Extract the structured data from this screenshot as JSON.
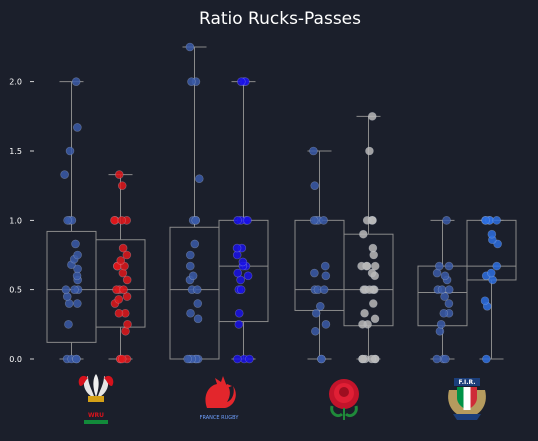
{
  "chart_data": {
    "type": "boxplot-strip",
    "title": "Ratio Rucks-Passes",
    "xlabel": "",
    "ylabel": "",
    "ylim": [
      0,
      2.25
    ],
    "yticks": [
      "0.0",
      "0.5",
      "1.0",
      "1.5",
      "2.0"
    ],
    "grid": false,
    "legend": "none",
    "colors": {
      "background": "#1b1f2b",
      "box": "#8a8a8a"
    },
    "groups": [
      {
        "logo": "wales-feathers-logo",
        "logo_text": "WRU",
        "series": [
          {
            "color": "#3a5ba8",
            "box": {
              "q1": 0.12,
              "median": 0.5,
              "q3": 0.92,
              "whisker_low": 0.0,
              "whisker_high": 2.0
            },
            "points": [
              0.0,
              0.0,
              0.0,
              0.0,
              0.25,
              0.4,
              0.4,
              0.45,
              0.5,
              0.5,
              0.5,
              0.57,
              0.6,
              0.65,
              0.68,
              0.72,
              0.75,
              0.83,
              1.0,
              1.0,
              1.0,
              1.33,
              1.5,
              1.67,
              2.0
            ]
          },
          {
            "color": "#e0181b",
            "box": {
              "q1": 0.23,
              "median": 0.5,
              "q3": 0.86,
              "whisker_low": 0.0,
              "whisker_high": 1.33
            },
            "points": [
              0.0,
              0.0,
              0.0,
              0.0,
              0.2,
              0.25,
              0.33,
              0.33,
              0.4,
              0.43,
              0.45,
              0.5,
              0.5,
              0.5,
              0.57,
              0.62,
              0.67,
              0.67,
              0.67,
              0.71,
              0.75,
              0.8,
              1.0,
              1.0,
              1.0,
              1.0,
              1.25,
              1.33
            ]
          }
        ]
      },
      {
        "logo": "france-rooster-logo",
        "logo_text": "FRANCE RUGBY",
        "series": [
          {
            "color": "#3a5ba8",
            "box": {
              "q1": 0.0,
              "median": 0.5,
              "q3": 0.95,
              "whisker_low": 0.0,
              "whisker_high": 2.25
            },
            "points": [
              0.0,
              0.0,
              0.0,
              0.0,
              0.0,
              0.0,
              0.29,
              0.33,
              0.4,
              0.5,
              0.5,
              0.57,
              0.6,
              0.67,
              0.75,
              0.83,
              1.0,
              1.0,
              1.0,
              1.3,
              2.0,
              2.0,
              2.25
            ]
          },
          {
            "color": "#1a12e8",
            "box": {
              "q1": 0.27,
              "median": 0.67,
              "q3": 1.0,
              "whisker_low": 0.0,
              "whisker_high": 2.0
            },
            "points": [
              0.0,
              0.0,
              0.0,
              0.25,
              0.33,
              0.5,
              0.5,
              0.57,
              0.6,
              0.62,
              0.67,
              0.67,
              0.7,
              0.75,
              0.8,
              0.8,
              1.0,
              1.0,
              1.0,
              1.0,
              2.0,
              2.0,
              2.0
            ]
          }
        ]
      },
      {
        "logo": "england-rose-logo",
        "logo_text": "",
        "series": [
          {
            "color": "#3a5ba8",
            "box": {
              "q1": 0.35,
              "median": 0.5,
              "q3": 1.0,
              "whisker_low": 0.0,
              "whisker_high": 1.5
            },
            "points": [
              0.0,
              0.0,
              0.2,
              0.25,
              0.33,
              0.38,
              0.5,
              0.5,
              0.5,
              0.6,
              0.62,
              0.67,
              1.0,
              1.0,
              1.0,
              1.0,
              1.25,
              1.5
            ]
          },
          {
            "color": "#b8b8b8",
            "box": {
              "q1": 0.24,
              "median": 0.5,
              "q3": 0.9,
              "whisker_low": 0.0,
              "whisker_high": 1.75
            },
            "points": [
              0.0,
              0.0,
              0.0,
              0.0,
              0.0,
              0.0,
              0.25,
              0.25,
              0.29,
              0.33,
              0.4,
              0.5,
              0.5,
              0.5,
              0.5,
              0.5,
              0.6,
              0.62,
              0.67,
              0.67,
              0.67,
              0.67,
              0.75,
              0.8,
              0.9,
              1.0,
              1.0,
              1.0,
              1.0,
              1.5,
              1.75
            ]
          }
        ]
      },
      {
        "logo": "italy-fir-logo",
        "logo_text": "F.I.R.",
        "series": [
          {
            "color": "#3a5ba8",
            "box": {
              "q1": 0.24,
              "median": 0.48,
              "q3": 0.67,
              "whisker_low": 0.0,
              "whisker_high": 1.0
            },
            "points": [
              0.0,
              0.0,
              0.0,
              0.2,
              0.25,
              0.33,
              0.33,
              0.4,
              0.45,
              0.5,
              0.5,
              0.5,
              0.57,
              0.6,
              0.62,
              0.67,
              0.67,
              1.0
            ]
          },
          {
            "color": "#2d6fe0",
            "box": {
              "q1": 0.57,
              "median": 0.67,
              "q3": 1.0,
              "whisker_low": 0.0,
              "whisker_high": 1.0
            },
            "points": [
              0.0,
              0.38,
              0.42,
              0.57,
              0.6,
              0.62,
              0.67,
              0.83,
              0.86,
              0.9,
              1.0,
              1.0,
              1.0,
              1.0,
              1.0
            ]
          }
        ]
      }
    ]
  }
}
